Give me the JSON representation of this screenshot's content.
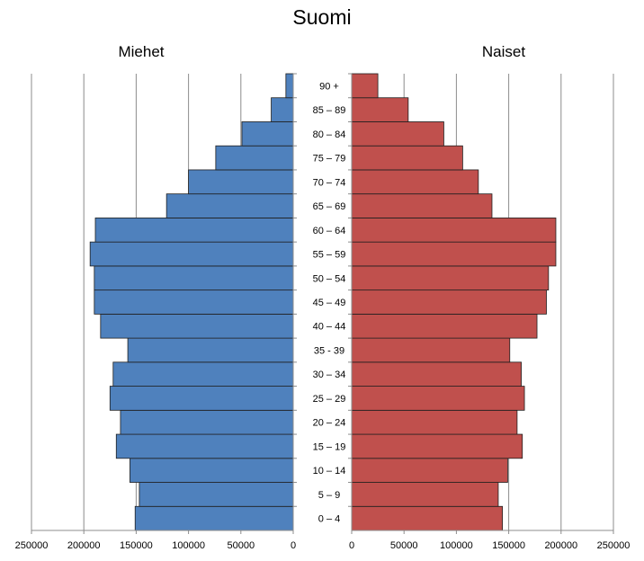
{
  "chart_data": {
    "type": "bar",
    "orientation": "horizontal",
    "title": "Suomi",
    "categories": [
      "0 – 4",
      "5 – 9",
      "10 – 14",
      "15 – 19",
      "20 – 24",
      "25 – 29",
      "30 – 34",
      "35 - 39",
      "40 – 44",
      "45 – 49",
      "50 – 54",
      "55 – 59",
      "60 – 64",
      "65 – 69",
      "70 – 74",
      "75 – 79",
      "80 – 84",
      "85 – 89",
      "90 +"
    ],
    "series": [
      {
        "name": "Miehet",
        "color": "#4f81bd",
        "values": [
          151000,
          147000,
          156000,
          169000,
          165000,
          175000,
          172000,
          158000,
          184000,
          190000,
          190000,
          194000,
          189000,
          121000,
          100000,
          74000,
          49000,
          21000,
          7000
        ]
      },
      {
        "name": "Naiset",
        "color": "#c0504d",
        "values": [
          144000,
          140000,
          149000,
          163000,
          158000,
          165000,
          162000,
          151000,
          177000,
          186000,
          188000,
          195000,
          195000,
          134000,
          121000,
          106000,
          88000,
          54000,
          25000
        ]
      }
    ],
    "xlim": [
      0,
      250000
    ],
    "xticks": [
      "250000",
      "200000",
      "150000",
      "100000",
      "50000",
      "0"
    ],
    "xticks_right": [
      "0",
      "50000",
      "100000",
      "150000",
      "200000",
      "250000"
    ],
    "grid": true
  }
}
